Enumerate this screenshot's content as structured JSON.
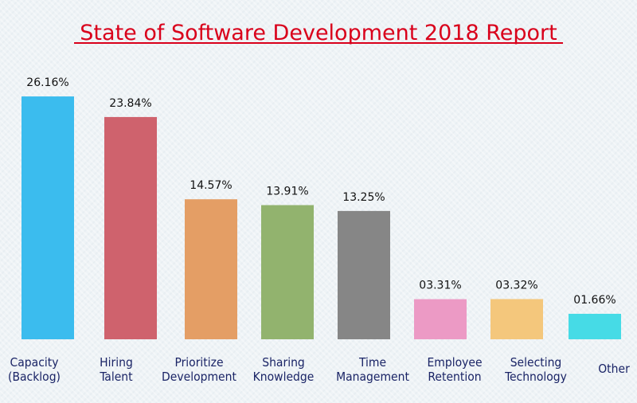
{
  "chart_data": {
    "type": "bar",
    "title": "State of Software Development 2018 Report",
    "xlabel": "",
    "ylabel": "",
    "grid": false,
    "legend": "none",
    "categories": [
      "Capacity\n(Backlog)",
      "Hiring\nTalent",
      "Prioritize\nDevelopment",
      "Sharing\nKnowledge",
      "Time\nManagement",
      "Employee\nRetention",
      "Selecting\nTechnology",
      "Other"
    ],
    "values": [
      26.16,
      23.84,
      14.57,
      13.91,
      13.25,
      3.31,
      3.32,
      1.66
    ],
    "value_labels": [
      "26.16%",
      "23.84%",
      "14.57%",
      "13.91%",
      "13.25%",
      "03.31%",
      "03.32%",
      "01.66%"
    ],
    "colors": [
      "#3bbcee",
      "#cf626d",
      "#e49e65",
      "#92b36e",
      "#868686",
      "#ec9ac5",
      "#f4c77c",
      "#46dbe6"
    ],
    "title_color": "#d9001b",
    "label_color": "#1a2466"
  }
}
